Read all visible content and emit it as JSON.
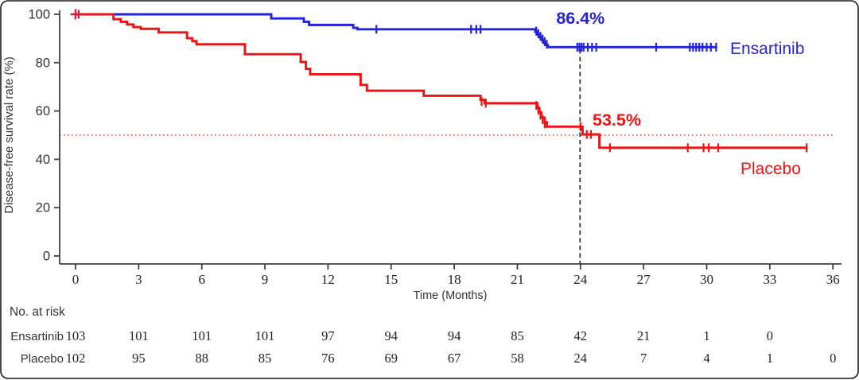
{
  "figure": {
    "ylabel": "Disease-free survival rate (%)",
    "xlabel": "Time (Months)",
    "risk_header": "No. at risk",
    "colors": {
      "ensartinib": "#2323d9",
      "placebo": "#ee1212",
      "axis": "#404040",
      "dashed_line": "#2b2b2b",
      "text": "#333333"
    }
  },
  "chart_data": {
    "type": "line",
    "subtype": "kaplan-meier-step",
    "title": "",
    "xlabel": "Time (Months)",
    "ylabel": "Disease-free survival rate (%)",
    "xlim": [
      0,
      36
    ],
    "ylim": [
      0,
      100
    ],
    "x_ticks": [
      0,
      3,
      6,
      9,
      12,
      15,
      18,
      21,
      24,
      27,
      30,
      33,
      36
    ],
    "y_ticks": [
      0,
      20,
      40,
      60,
      80,
      100
    ],
    "grid": false,
    "reference_lines": {
      "vertical_dashed_x": 24,
      "horizontal_dotted_y": 50
    },
    "series": [
      {
        "name": "Ensartinib",
        "color": "#2323d9",
        "label_annotation": "Ensartinib",
        "landmark_label": "86.4%",
        "landmark_x": 24,
        "end_x": 30.5,
        "steps": [
          [
            0,
            100
          ],
          [
            9.3,
            98.3
          ],
          [
            10.85,
            96.9
          ],
          [
            11.1,
            95.6
          ],
          [
            13.2,
            94.4
          ],
          [
            13.4,
            93.8
          ],
          [
            21.85,
            92.7
          ],
          [
            21.95,
            91.6
          ],
          [
            22.05,
            90.5
          ],
          [
            22.15,
            89.4
          ],
          [
            22.25,
            88.3
          ],
          [
            22.35,
            87.3
          ],
          [
            22.45,
            86.4
          ],
          [
            30.5,
            86.4
          ]
        ],
        "censors": [
          [
            14.3,
            93.8
          ],
          [
            18.8,
            93.8
          ],
          [
            19.05,
            93.8
          ],
          [
            19.25,
            93.8
          ],
          [
            21.9,
            93.1
          ],
          [
            22.0,
            92.0
          ],
          [
            22.1,
            90.9
          ],
          [
            22.2,
            89.8
          ],
          [
            22.3,
            88.7
          ],
          [
            22.4,
            87.6
          ],
          [
            23.85,
            86.4
          ],
          [
            23.95,
            86.4
          ],
          [
            24.05,
            86.4
          ],
          [
            24.15,
            86.4
          ],
          [
            24.35,
            86.4
          ],
          [
            24.55,
            86.4
          ],
          [
            24.75,
            86.4
          ],
          [
            27.6,
            86.4
          ],
          [
            29.2,
            86.4
          ],
          [
            29.35,
            86.4
          ],
          [
            29.5,
            86.4
          ],
          [
            29.65,
            86.4
          ],
          [
            29.8,
            86.4
          ],
          [
            30.0,
            86.4
          ],
          [
            30.2,
            86.4
          ],
          [
            30.45,
            86.4
          ]
        ]
      },
      {
        "name": "Placebo",
        "color": "#ee1212",
        "label_annotation": "Placebo",
        "landmark_label": "53.5%",
        "landmark_x": 24,
        "end_x": 34.8,
        "steps": [
          [
            0,
            100
          ],
          [
            1.8,
            98.0
          ],
          [
            2.15,
            96.9
          ],
          [
            2.45,
            95.8
          ],
          [
            2.75,
            94.7
          ],
          [
            3.1,
            94.0
          ],
          [
            3.95,
            92.5
          ],
          [
            5.3,
            90.1
          ],
          [
            5.55,
            88.9
          ],
          [
            5.75,
            87.6
          ],
          [
            8.05,
            83.5
          ],
          [
            10.7,
            80.3
          ],
          [
            10.95,
            77.4
          ],
          [
            11.15,
            75.2
          ],
          [
            13.55,
            70.8
          ],
          [
            13.85,
            68.4
          ],
          [
            16.55,
            66.3
          ],
          [
            19.25,
            64.6
          ],
          [
            19.45,
            63.2
          ],
          [
            21.95,
            61.3
          ],
          [
            22.05,
            59.3
          ],
          [
            22.15,
            57.3
          ],
          [
            22.3,
            55.4
          ],
          [
            22.4,
            53.5
          ],
          [
            24.1,
            50.3
          ],
          [
            24.9,
            44.8
          ],
          [
            34.8,
            44.8
          ]
        ],
        "censors": [
          [
            0.15,
            100
          ],
          [
            19.3,
            63.9
          ],
          [
            19.5,
            63.2
          ],
          [
            21.9,
            62.3
          ],
          [
            22.0,
            60.3
          ],
          [
            22.1,
            58.3
          ],
          [
            22.2,
            56.4
          ],
          [
            22.3,
            54.7
          ],
          [
            24.0,
            53.5
          ],
          [
            24.3,
            50.3
          ],
          [
            24.5,
            50.3
          ],
          [
            25.4,
            44.8
          ],
          [
            29.1,
            44.8
          ],
          [
            29.85,
            44.8
          ],
          [
            30.1,
            44.8
          ],
          [
            30.55,
            44.8
          ],
          [
            34.75,
            44.8
          ]
        ]
      }
    ],
    "risk_table": {
      "header": "No. at risk",
      "time_points": [
        0,
        3,
        6,
        9,
        12,
        15,
        18,
        21,
        24,
        27,
        30,
        33,
        36
      ],
      "rows": [
        {
          "name": "Ensartinib",
          "counts": [
            103,
            101,
            101,
            101,
            97,
            94,
            94,
            85,
            42,
            21,
            1,
            0
          ]
        },
        {
          "name": "Placebo",
          "counts": [
            102,
            95,
            88,
            85,
            76,
            69,
            67,
            58,
            24,
            7,
            4,
            1,
            0
          ]
        }
      ]
    }
  }
}
